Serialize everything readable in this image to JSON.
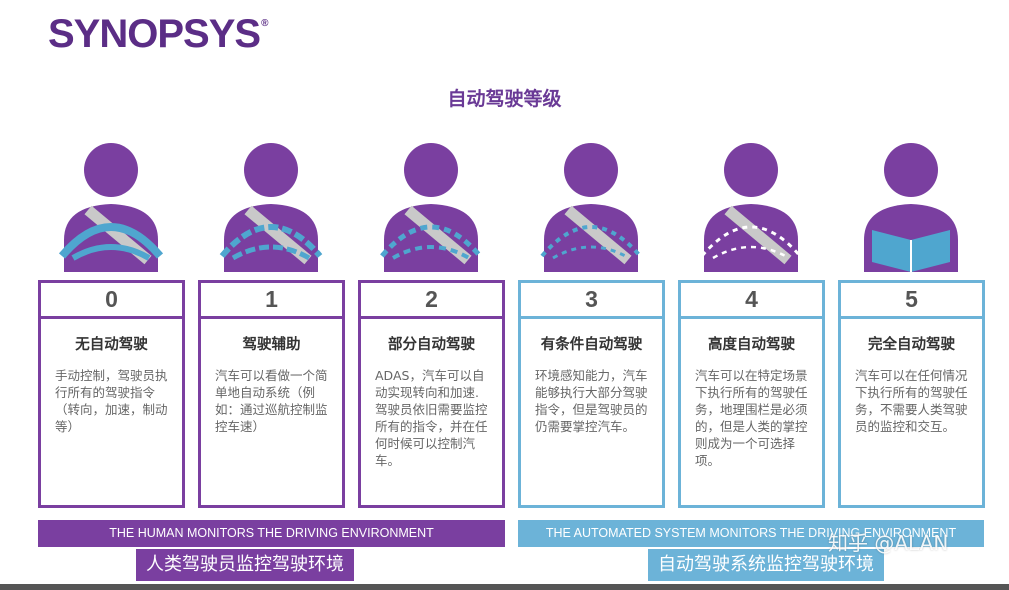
{
  "brand": {
    "logo_text": "SYNOPSYS",
    "registered": "®"
  },
  "title": "自动驾驶等级",
  "levels": [
    {
      "num": "0",
      "name": "无自动驾驶",
      "desc": "手动控制，驾驶员执行所有的驾驶指令（转向，加速，制动等）",
      "icon": "driver-full-wheel-icon"
    },
    {
      "num": "1",
      "name": "驾驶辅助",
      "desc": "汽车可以看做一个简单地自动系统（例如：通过巡航控制监控车速）",
      "icon": "driver-assist-wheel-icon"
    },
    {
      "num": "2",
      "name": "部分自动驾驶",
      "desc": "ADAS，汽车可以自动实现转向和加速.驾驶员依旧需要监控所有的指令，并在任何时候可以控制汽车。",
      "icon": "driver-partial-wheel-icon"
    },
    {
      "num": "3",
      "name": "有条件自动驾驶",
      "desc": "环境感知能力，汽车能够执行大部分驾驶指令，但是驾驶员的仍需要掌控汽车。",
      "icon": "driver-conditional-wheel-icon"
    },
    {
      "num": "4",
      "name": "高度自动驾驶",
      "desc": "汽车可以在特定场景下执行所有的驾驶任务，地理围栏是必须的，但是人类的掌控则成为一个可选择项。",
      "icon": "driver-high-wheel-icon"
    },
    {
      "num": "5",
      "name": "完全自动驾驶",
      "desc": "汽车可以在任何情况下执行所有的驾驶任务，不需要人类驾驶员的监控和交互。",
      "icon": "driver-reading-book-icon"
    }
  ],
  "bars": {
    "human": "THE HUMAN MONITORS THE DRIVING ENVIRONMENT",
    "auto": "THE AUTOMATED SYSTEM MONITORS THE DRIVING ENVIRONMENT"
  },
  "chips": {
    "human": "人类驾驶员监控驾驶环境",
    "auto": "自动驾驶系统监控驾驶环境"
  },
  "watermark": "知乎 @ALAN",
  "colors": {
    "purple": "#7a3fa0",
    "blue": "#6cb3d8",
    "title": "#6a3a96"
  }
}
